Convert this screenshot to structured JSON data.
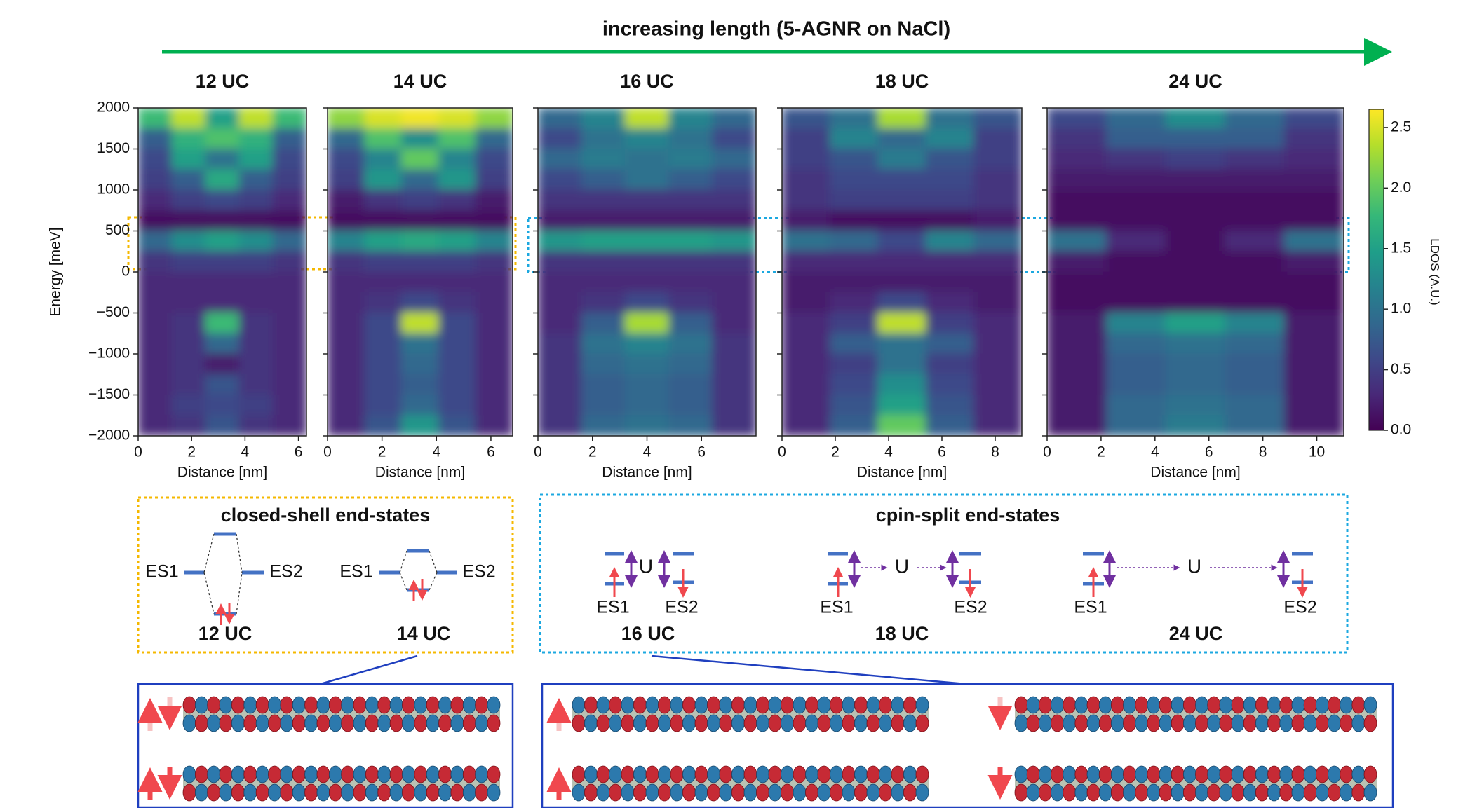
{
  "header": {
    "title": "increasing length (5-AGNR on NaCl)"
  },
  "chart_data": [
    {
      "type": "heatmap",
      "title": "12 UC",
      "xlabel": "Distance [nm]",
      "ylabel": "Energy [meV]",
      "xlim": [
        0,
        6.3
      ],
      "xticks": [
        0,
        2,
        4,
        6
      ],
      "ylim": [
        -2000,
        2000
      ],
      "yticks": [
        {
          "value": -2000,
          "label": "−2000"
        },
        {
          "value": -1500,
          "label": "−1500"
        },
        {
          "value": -1000,
          "label": "−1000"
        },
        {
          "value": -500,
          "label": "−500"
        },
        0,
        500,
        1000,
        1500,
        2000
      ],
      "z": [
        [
          1.8,
          2.4,
          1.5,
          2.4,
          1.8
        ],
        [
          0.8,
          1.7,
          1.9,
          1.7,
          0.8
        ],
        [
          0.6,
          1.5,
          1.0,
          1.5,
          0.6
        ],
        [
          0.5,
          0.8,
          1.6,
          0.8,
          0.5
        ],
        [
          0.3,
          0.5,
          0.6,
          0.5,
          0.3
        ],
        [
          0.1,
          0.1,
          0.1,
          0.1,
          0.1
        ],
        [
          0.9,
          1.3,
          1.5,
          1.3,
          0.9
        ],
        [
          0.4,
          0.5,
          0.5,
          0.5,
          0.4
        ],
        [
          0.3,
          0.3,
          0.3,
          0.3,
          0.3
        ],
        [
          0.3,
          0.3,
          0.3,
          0.3,
          0.3
        ],
        [
          0.3,
          0.4,
          1.8,
          0.4,
          0.3
        ],
        [
          0.3,
          0.4,
          0.9,
          0.4,
          0.3
        ],
        [
          0.3,
          0.4,
          0.2,
          0.4,
          0.3
        ],
        [
          0.3,
          0.4,
          0.7,
          0.4,
          0.3
        ],
        [
          0.3,
          0.5,
          0.6,
          0.5,
          0.3
        ],
        [
          0.3,
          0.4,
          0.7,
          0.4,
          0.3
        ]
      ]
    },
    {
      "type": "heatmap",
      "title": "14 UC",
      "xlabel": "Distance [nm]",
      "xlim": [
        0,
        6.8
      ],
      "xticks": [
        0,
        2,
        4,
        6
      ],
      "ylim": [
        -2000,
        2000
      ],
      "yticks": [
        -2000,
        -1500,
        -1000,
        -500,
        0,
        500,
        1000,
        1500,
        2000
      ],
      "z": [
        [
          2.2,
          2.5,
          2.6,
          2.5,
          2.2
        ],
        [
          0.9,
          1.9,
          1.3,
          1.9,
          0.9
        ],
        [
          0.6,
          1.2,
          2.0,
          1.2,
          0.6
        ],
        [
          0.5,
          1.4,
          0.9,
          1.4,
          0.5
        ],
        [
          0.2,
          0.4,
          0.5,
          0.4,
          0.2
        ],
        [
          0.1,
          0.1,
          0.1,
          0.1,
          0.1
        ],
        [
          1.2,
          1.5,
          1.6,
          1.5,
          1.2
        ],
        [
          0.4,
          0.5,
          0.5,
          0.5,
          0.4
        ],
        [
          0.3,
          0.3,
          0.3,
          0.3,
          0.3
        ],
        [
          0.3,
          0.4,
          0.6,
          0.4,
          0.3
        ],
        [
          0.3,
          0.6,
          2.4,
          0.6,
          0.3
        ],
        [
          0.3,
          0.6,
          1.0,
          0.6,
          0.3
        ],
        [
          0.3,
          0.6,
          0.9,
          0.6,
          0.3
        ],
        [
          0.3,
          0.6,
          0.8,
          0.6,
          0.3
        ],
        [
          0.3,
          0.6,
          0.9,
          0.6,
          0.3
        ],
        [
          0.3,
          0.7,
          1.4,
          0.7,
          0.3
        ]
      ]
    },
    {
      "type": "heatmap",
      "title": "16 UC",
      "xlabel": "Distance [nm]",
      "xlim": [
        0,
        8
      ],
      "xticks": [
        0,
        2,
        4,
        6
      ],
      "ylim": [
        -2000,
        2000
      ],
      "yticks": [
        -2000,
        -1500,
        -1000,
        -500,
        0,
        500,
        1000,
        1500,
        2000
      ],
      "z": [
        [
          0.9,
          1.2,
          2.4,
          1.2,
          0.9
        ],
        [
          0.6,
          1.0,
          1.2,
          1.0,
          0.6
        ],
        [
          0.9,
          1.1,
          1.0,
          1.1,
          0.9
        ],
        [
          0.6,
          0.8,
          1.0,
          0.8,
          0.6
        ],
        [
          0.4,
          0.4,
          0.4,
          0.4,
          0.4
        ],
        [
          0.2,
          0.2,
          0.2,
          0.2,
          0.2
        ],
        [
          1.4,
          1.5,
          1.5,
          1.5,
          1.4
        ],
        [
          0.4,
          0.4,
          0.4,
          0.4,
          0.4
        ],
        [
          0.3,
          0.3,
          0.3,
          0.3,
          0.3
        ],
        [
          0.3,
          0.4,
          0.6,
          0.4,
          0.3
        ],
        [
          0.3,
          0.8,
          2.3,
          0.8,
          0.3
        ],
        [
          0.4,
          1.0,
          1.2,
          1.0,
          0.4
        ],
        [
          0.4,
          0.9,
          1.0,
          0.9,
          0.4
        ],
        [
          0.4,
          0.8,
          0.9,
          0.8,
          0.4
        ],
        [
          0.4,
          0.8,
          0.9,
          0.8,
          0.4
        ],
        [
          0.4,
          0.9,
          1.0,
          0.9,
          0.4
        ]
      ]
    },
    {
      "type": "heatmap",
      "title": "18 UC",
      "xlabel": "Distance [nm]",
      "xlim": [
        0,
        9
      ],
      "xticks": [
        0,
        2,
        4,
        6,
        8
      ],
      "ylim": [
        -2000,
        2000
      ],
      "yticks": [
        -2000,
        -1500,
        -1000,
        -500,
        0,
        500,
        1000,
        1500,
        2000
      ],
      "z": [
        [
          0.7,
          1.0,
          2.3,
          1.0,
          0.7
        ],
        [
          0.5,
          1.2,
          0.9,
          1.2,
          0.5
        ],
        [
          0.5,
          0.7,
          1.1,
          0.7,
          0.5
        ],
        [
          0.4,
          0.6,
          0.6,
          0.6,
          0.4
        ],
        [
          0.4,
          0.5,
          0.5,
          0.5,
          0.4
        ],
        [
          0.2,
          0.1,
          0.1,
          0.1,
          0.2
        ],
        [
          1.0,
          0.9,
          0.6,
          1.2,
          0.9
        ],
        [
          0.3,
          0.3,
          0.3,
          0.3,
          0.3
        ],
        [
          0.2,
          0.2,
          0.2,
          0.2,
          0.2
        ],
        [
          0.2,
          0.3,
          0.6,
          0.3,
          0.2
        ],
        [
          0.3,
          0.5,
          2.4,
          0.5,
          0.3
        ],
        [
          0.3,
          0.8,
          1.0,
          0.8,
          0.3
        ],
        [
          0.3,
          0.5,
          1.0,
          0.5,
          0.3
        ],
        [
          0.3,
          0.6,
          1.3,
          0.6,
          0.3
        ],
        [
          0.3,
          0.7,
          1.5,
          0.7,
          0.3
        ],
        [
          0.3,
          0.8,
          2.0,
          0.8,
          0.3
        ]
      ]
    },
    {
      "type": "heatmap",
      "title": "24 UC",
      "xlabel": "Distance [nm]",
      "xlim": [
        0,
        11
      ],
      "xticks": [
        0,
        2,
        4,
        6,
        8,
        10
      ],
      "ylim": [
        -2000,
        2000
      ],
      "yticks": [
        -2000,
        -1500,
        -1000,
        -500,
        0,
        500,
        1000,
        1500,
        2000
      ],
      "z": [
        [
          0.6,
          0.9,
          1.3,
          0.9,
          0.6
        ],
        [
          0.4,
          0.8,
          0.8,
          0.8,
          0.4
        ],
        [
          0.3,
          0.4,
          0.5,
          0.4,
          0.3
        ],
        [
          0.2,
          0.2,
          0.2,
          0.2,
          0.2
        ],
        [
          0.1,
          0.1,
          0.1,
          0.1,
          0.1
        ],
        [
          0.1,
          0.1,
          0.1,
          0.1,
          0.1
        ],
        [
          1.0,
          0.3,
          0.1,
          0.3,
          1.0
        ],
        [
          0.2,
          0.1,
          0.1,
          0.1,
          0.2
        ],
        [
          0.1,
          0.1,
          0.1,
          0.1,
          0.1
        ],
        [
          0.1,
          0.1,
          0.1,
          0.1,
          0.1
        ],
        [
          0.2,
          1.2,
          1.5,
          1.2,
          0.2
        ],
        [
          0.2,
          0.9,
          1.0,
          0.9,
          0.2
        ],
        [
          0.2,
          0.8,
          0.9,
          0.8,
          0.2
        ],
        [
          0.2,
          0.8,
          0.9,
          0.8,
          0.2
        ],
        [
          0.2,
          0.9,
          1.0,
          0.9,
          0.2
        ],
        [
          0.2,
          0.9,
          1.1,
          0.9,
          0.2
        ]
      ]
    }
  ],
  "colorbar": {
    "label": "LDOS (A.U.)",
    "lim": [
      0,
      2.65
    ],
    "ticks": [
      {
        "value": 0,
        "label": "0.0"
      },
      0.5,
      {
        "value": 1,
        "label": "1.0"
      },
      1.5,
      {
        "value": 2,
        "label": "2.0"
      },
      2.5
    ]
  },
  "closed_shell": {
    "title": "closed-shell end-states",
    "items": [
      {
        "left": "ES1",
        "right": "ES2",
        "label": "12 UC"
      },
      {
        "left": "ES1",
        "right": "ES2",
        "label": "14 UC"
      }
    ]
  },
  "spin_split": {
    "title": "cpin-split end-states",
    "items": [
      {
        "left": "ES1",
        "right": "ES2",
        "coupling": "U",
        "label": "16 UC"
      },
      {
        "left": "ES1",
        "right": "ES2",
        "coupling": "U",
        "label": "18 UC"
      },
      {
        "left": "ES1",
        "right": "ES2",
        "coupling": "U",
        "label": "24 UC"
      }
    ]
  }
}
